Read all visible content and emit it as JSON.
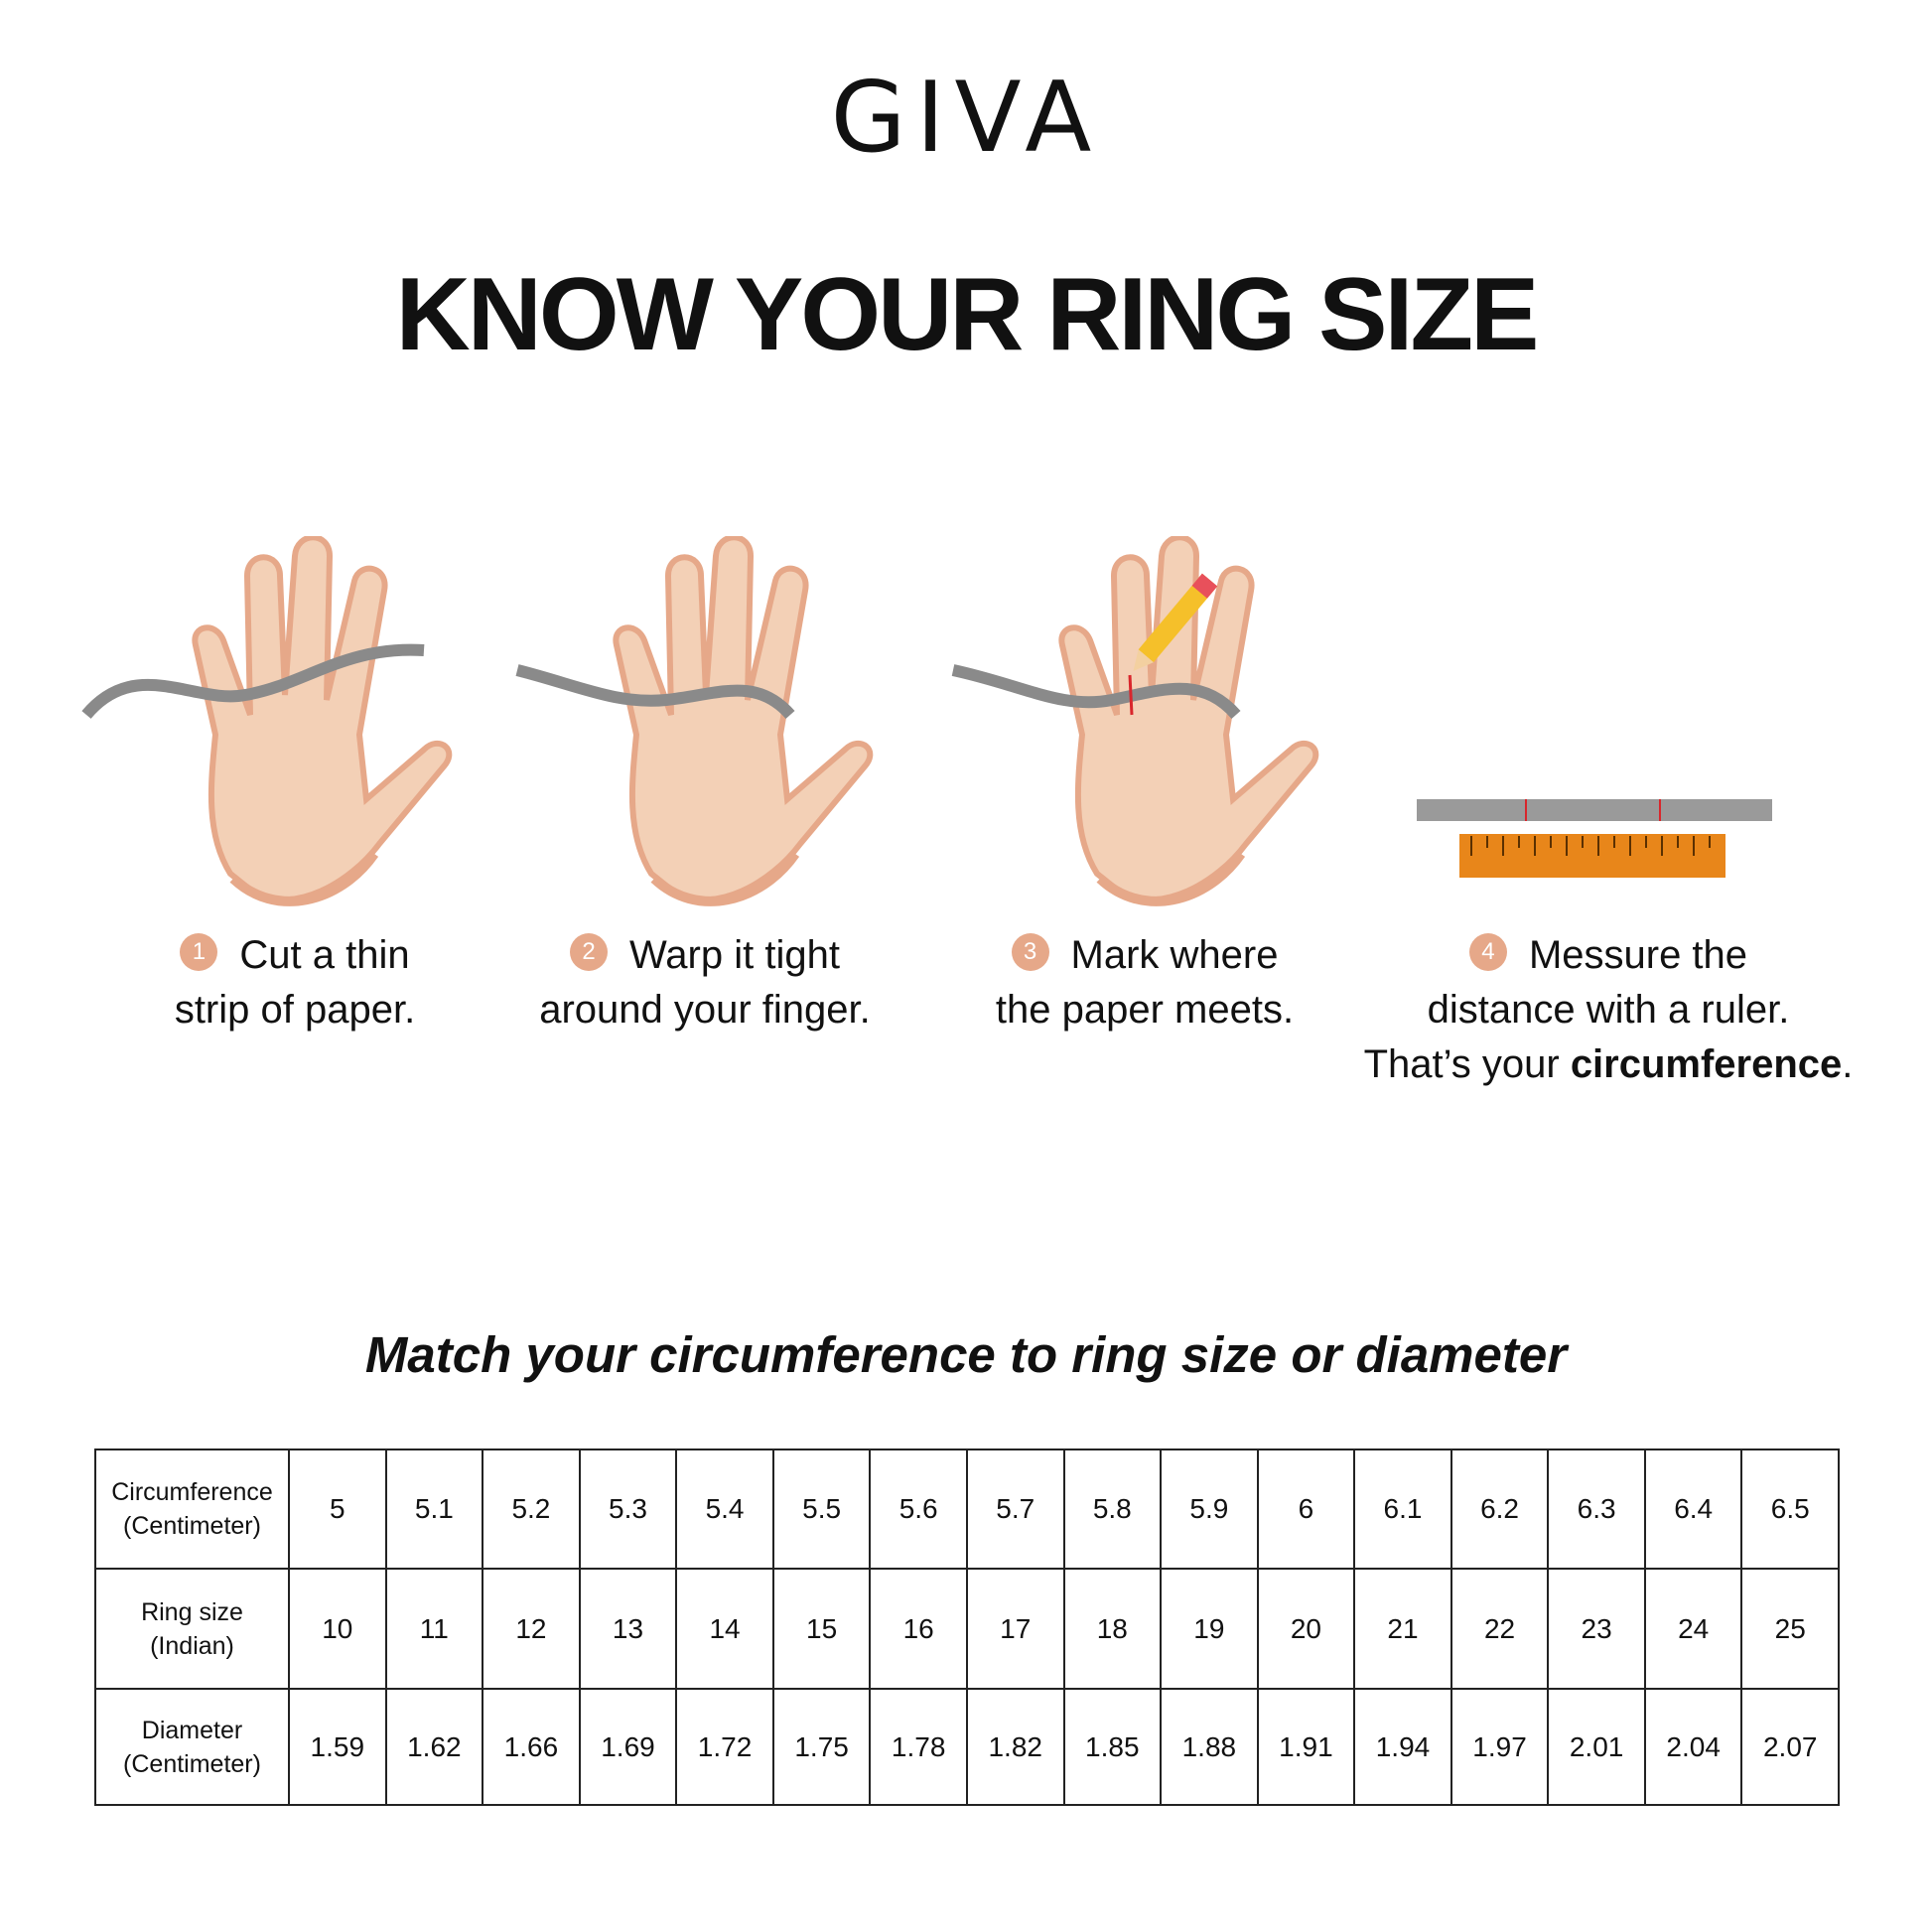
{
  "brand": {
    "logo": "GIVA"
  },
  "title": "KNOW YOUR RING SIZE",
  "steps": [
    {
      "number": "1",
      "line1": "Cut a thin",
      "line2": "strip of paper.",
      "icon": "hand-with-paper-strip-icon"
    },
    {
      "number": "2",
      "line1": "Warp it tight",
      "line2": "around your finger.",
      "icon": "hand-wrapped-finger-icon"
    },
    {
      "number": "3",
      "line1": "Mark where",
      "line2": "the paper meets.",
      "icon": "hand-pencil-mark-icon"
    },
    {
      "number": "4",
      "line1": "Messure the",
      "line2": "distance with a ruler.",
      "line3_pre": "That’s your ",
      "line3_bold": "circumference",
      "line3_post": ".",
      "icon": "ruler-icon"
    }
  ],
  "subtitle": "Match your circumference to ring size or diameter",
  "table": {
    "rows": [
      {
        "label1": "Circumference",
        "label2": "(Centimeter)",
        "values": [
          "5",
          "5.1",
          "5.2",
          "5.3",
          "5.4",
          "5.5",
          "5.6",
          "5.7",
          "5.8",
          "5.9",
          "6",
          "6.1",
          "6.2",
          "6.3",
          "6.4",
          "6.5"
        ]
      },
      {
        "label1": "Ring size",
        "label2": "(Indian)",
        "values": [
          "10",
          "11",
          "12",
          "13",
          "14",
          "15",
          "16",
          "17",
          "18",
          "19",
          "20",
          "21",
          "22",
          "23",
          "24",
          "25"
        ]
      },
      {
        "label1": "Diameter",
        "label2": "(Centimeter)",
        "values": [
          "1.59",
          "1.62",
          "1.66",
          "1.69",
          "1.72",
          "1.75",
          "1.78",
          "1.82",
          "1.85",
          "1.88",
          "1.91",
          "1.94",
          "1.97",
          "2.01",
          "2.04",
          "2.07"
        ]
      }
    ]
  },
  "colors": {
    "skin": "#f3d0b6",
    "skin_shadow": "#e6a889",
    "paper": "#8a8a8a",
    "ruler": "#e8861a",
    "badge": "#e6a889",
    "mark": "#d9262c"
  }
}
